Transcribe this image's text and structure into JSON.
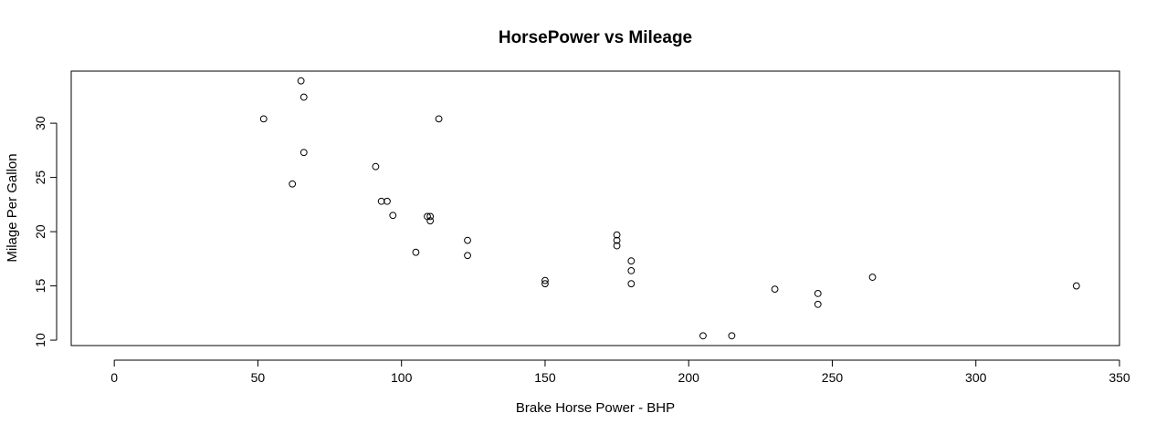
{
  "chart_data": {
    "type": "scatter",
    "title": "HorsePower vs Mileage",
    "xlabel": "Brake Horse Power - BHP",
    "ylabel": "Milage Per Gallon",
    "xlim": [
      -15,
      350
    ],
    "ylim": [
      9.5,
      34.8
    ],
    "x_ticks": [
      0,
      50,
      100,
      150,
      200,
      250,
      300,
      350
    ],
    "y_ticks": [
      10,
      15,
      20,
      25,
      30
    ],
    "grid": false,
    "marker": "open-circle",
    "points": [
      {
        "x": 52,
        "y": 30.4
      },
      {
        "x": 62,
        "y": 24.4
      },
      {
        "x": 65,
        "y": 33.9
      },
      {
        "x": 66,
        "y": 32.4
      },
      {
        "x": 66,
        "y": 27.3
      },
      {
        "x": 91,
        "y": 26.0
      },
      {
        "x": 93,
        "y": 22.8
      },
      {
        "x": 95,
        "y": 22.8
      },
      {
        "x": 97,
        "y": 21.5
      },
      {
        "x": 105,
        "y": 18.1
      },
      {
        "x": 109,
        "y": 21.4
      },
      {
        "x": 110,
        "y": 21.0
      },
      {
        "x": 110,
        "y": 21.4
      },
      {
        "x": 113,
        "y": 30.4
      },
      {
        "x": 123,
        "y": 19.2
      },
      {
        "x": 123,
        "y": 17.8
      },
      {
        "x": 150,
        "y": 15.5
      },
      {
        "x": 150,
        "y": 15.2
      },
      {
        "x": 175,
        "y": 18.7
      },
      {
        "x": 175,
        "y": 19.2
      },
      {
        "x": 175,
        "y": 19.7
      },
      {
        "x": 180,
        "y": 16.4
      },
      {
        "x": 180,
        "y": 17.3
      },
      {
        "x": 180,
        "y": 15.2
      },
      {
        "x": 205,
        "y": 10.4
      },
      {
        "x": 215,
        "y": 10.4
      },
      {
        "x": 230,
        "y": 14.7
      },
      {
        "x": 245,
        "y": 14.3
      },
      {
        "x": 245,
        "y": 13.3
      },
      {
        "x": 264,
        "y": 15.8
      },
      {
        "x": 335,
        "y": 15.0
      }
    ]
  }
}
